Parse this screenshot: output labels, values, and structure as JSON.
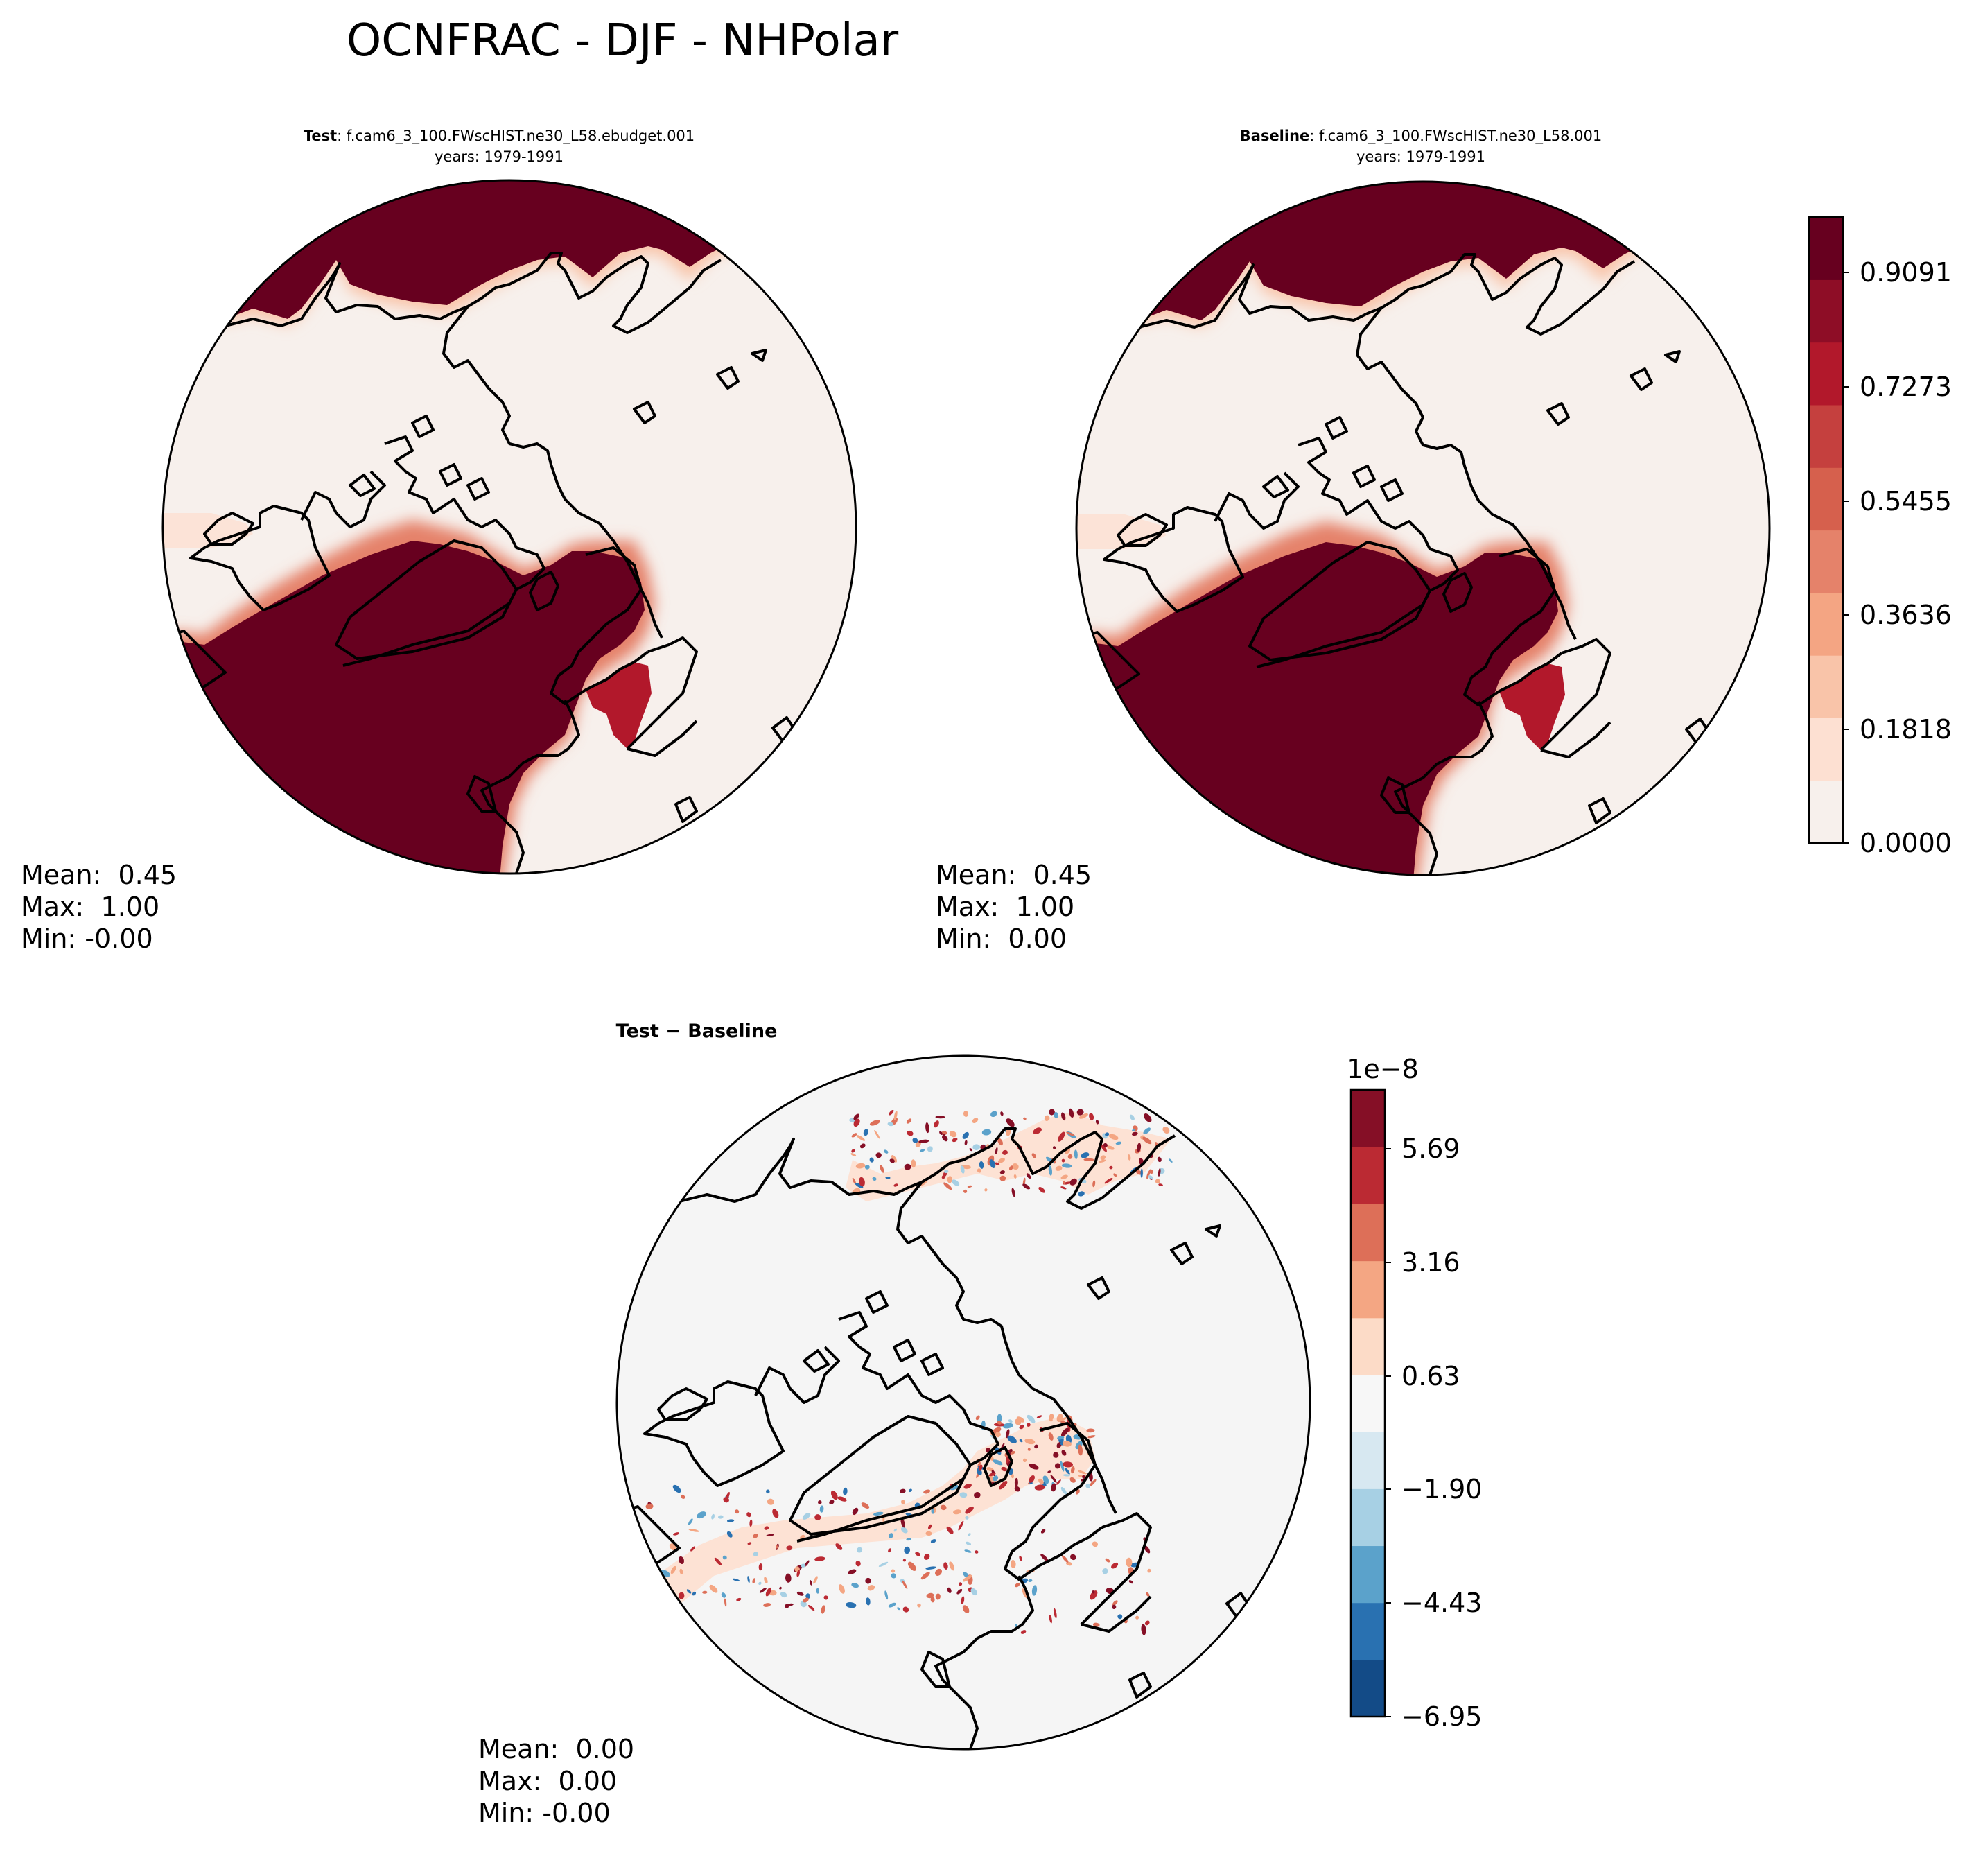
{
  "figure": {
    "title": "OCNFRAC - DJF - NHPolar"
  },
  "panels": {
    "test": {
      "label_bold": "Test",
      "label_rest": ": f.cam6_3_100.FWscHIST.ne30_L58.ebudget.001",
      "years": "years: 1979-1991",
      "stats": {
        "mean": "Mean:  0.45",
        "max": "Max:  1.00",
        "min": "Min: -0.00"
      }
    },
    "baseline": {
      "label_bold": "Baseline",
      "label_rest": ": f.cam6_3_100.FWscHIST.ne30_L58.001",
      "years": "years: 1979-1991",
      "stats": {
        "mean": "Mean:  0.45",
        "max": "Max:  1.00",
        "min": "Min:  0.00"
      }
    },
    "diff": {
      "label": "Test − Baseline",
      "stats": {
        "mean": "Mean:  0.00",
        "max": "Max:  0.00",
        "min": "Min: -0.00"
      }
    }
  },
  "colorbars": {
    "main": {
      "ticks": [
        "0.9091",
        "0.7273",
        "0.5455",
        "0.3636",
        "0.1818",
        "0.0000"
      ],
      "colors": [
        "#f7f0ec",
        "#fde0d2",
        "#f9c4a9",
        "#f4a583",
        "#e5826a",
        "#d6604d",
        "#c5403e",
        "#b2182b",
        "#8e0d26",
        "#67001f"
      ]
    },
    "diff": {
      "offset_label": "1e−8",
      "ticks": [
        "5.69",
        "3.16",
        "0.63",
        "−1.90",
        "−4.43",
        "−6.95"
      ],
      "colors": [
        "#134b87",
        "#2971b1",
        "#5ba2cb",
        "#a7d0e4",
        "#d7e8f1",
        "#f7f7f7",
        "#fcdbc7",
        "#f4a683",
        "#dd6f58",
        "#bb2a33",
        "#850f26"
      ]
    }
  }
}
